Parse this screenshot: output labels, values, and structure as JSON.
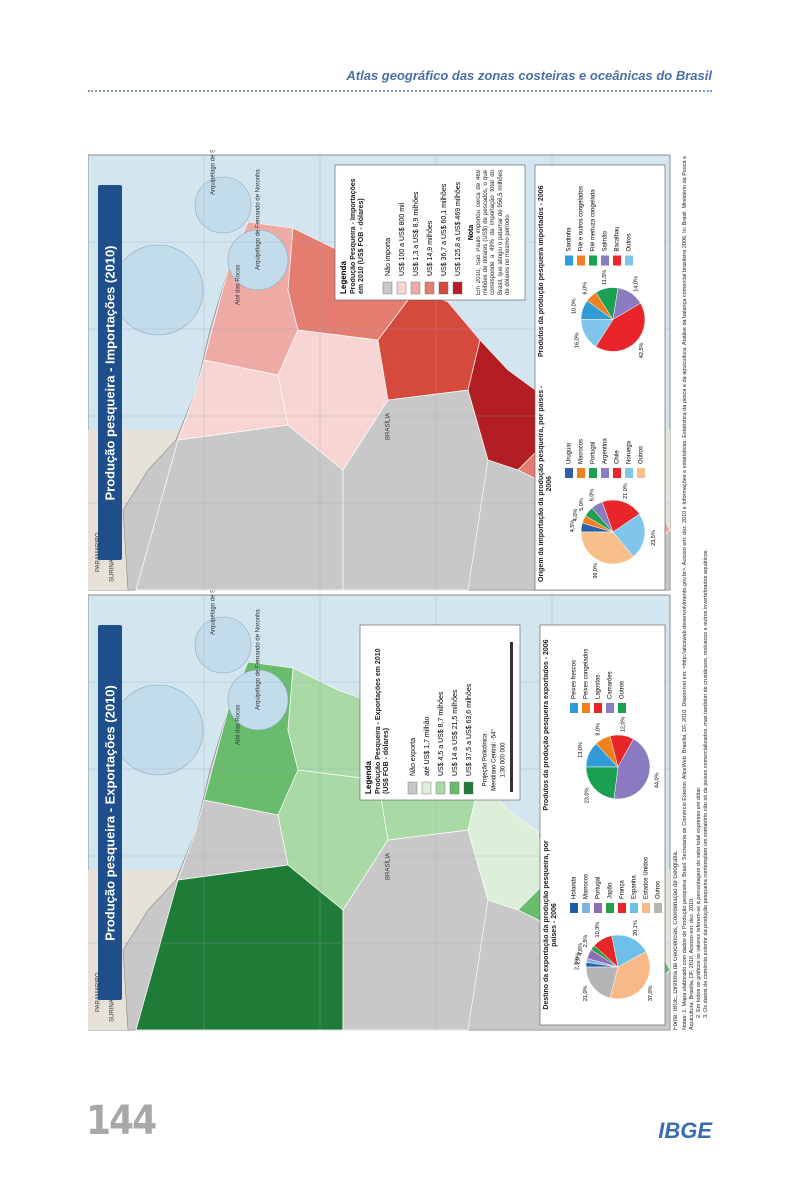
{
  "header": {
    "title": "Atlas geográfico das zonas costeiras e oceânicas do Brasil",
    "page_number": "144",
    "logo": "IBGE"
  },
  "panels": [
    {
      "title": "Produção pesqueira - Exportações (2010)",
      "legend": {
        "heading": "Legenda",
        "subtitle": "Produção Pesqueira - Exportações em 2010 (US$ FOB - dólares)",
        "items": [
          {
            "label": "Não exporta",
            "color": "#c8c8c8"
          },
          {
            "label": "até US$ 1,7 milhão",
            "color": "#dcefd8"
          },
          {
            "label": "US$ 4,5 a US$ 8,7 milhões",
            "color": "#a9d9a4"
          },
          {
            "label": "US$ 14 a US$ 21,5 milhões",
            "color": "#69bb6d"
          },
          {
            "label": "US$ 37,5 a US$ 63,6 milhões",
            "color": "#1e7c37"
          }
        ],
        "projection": "Projeção Policônica",
        "meridian": "Meridiano Central: -54°",
        "scale": "1:30 000 000"
      },
      "map_labels": [
        "PARAMARIBO",
        "SURINAME",
        "GUYANE",
        "Atol das Rocas",
        "Arquipélago de Fernando de Noronha",
        "Arquipélago de São Pedro e São Paulo",
        "BRASÍLIA",
        "PARAGUAY",
        "ARGENTINA",
        "URUGUAY",
        "MONTEVIDEO"
      ],
      "charts": [
        {
          "type": "pie",
          "title": "Destino da exportação da produção pesqueira, por países - 2006",
          "categories": [
            "Holanda",
            "Marrocos",
            "Portugal",
            "Japão",
            "França",
            "Espanha",
            "Estados Unidos",
            "Outros"
          ],
          "values": [
            2.3,
            2.0,
            4.8,
            2.5,
            10.3,
            20.1,
            37.0,
            21.0
          ],
          "value_labels": [
            "2,3%",
            "2,0%",
            "4,8%",
            "2,5%",
            "10,3%",
            "20,1%",
            "37,0%",
            "21,0%"
          ],
          "colors": [
            "#1f5fa8",
            "#7fb3dd",
            "#8f6bb3",
            "#2a9d4a",
            "#e8262a",
            "#6ec0e8",
            "#f7b988",
            "#b5b5b5"
          ]
        },
        {
          "type": "pie",
          "title": "Produtos da produção pesqueira exportados - 2006",
          "categories": [
            "Peixes frescos",
            "Peixes congelados",
            "Lagostas",
            "Camarões",
            "Outros"
          ],
          "values": [
            13.0,
            8.0,
            12.0,
            44.0,
            23.0
          ],
          "value_labels": [
            "13,0%",
            "8,0%",
            "12,0%",
            "44,0%",
            "23,0%"
          ],
          "colors": [
            "#2f9bd8",
            "#f08020",
            "#e8262a",
            "#8b7bc0",
            "#1aa050"
          ]
        }
      ]
    },
    {
      "title": "Produção pesqueira - Importações (2010)",
      "legend": {
        "heading": "Legenda",
        "subtitle": "Produção Pesqueira - Importações em 2010 (US$ FOB - dólares)",
        "items": [
          {
            "label": "Não importa",
            "color": "#c8c8c8"
          },
          {
            "label": "US$ 100 a US$ 800 mil",
            "color": "#f6d5d3"
          },
          {
            "label": "US$ 1,3 a US$ 8,9 milhões",
            "color": "#eeaaa5"
          },
          {
            "label": "US$ 14,9 milhões",
            "color": "#e47d70"
          },
          {
            "label": "US$ 36,7 a US$ 60,1 milhões",
            "color": "#d6493d"
          },
          {
            "label": "US$ 125,8 a US$ 469 milhões",
            "color": "#b31e24"
          }
        ],
        "note_title": "Nota",
        "note": "Em 2010, São Paulo importou cerca de 469 milhões de dólares (US$) de pescados, o que corresponde a 49% da importação total do Brasil, que atingiu o patamar de 956,5 milhões de dólares no mesmo período."
      },
      "map_labels": [
        "PARAMARIBO",
        "SURINAME",
        "GUYANE",
        "Atol das Rocas",
        "Arquipélago de Fernando de Noronha",
        "Arquipélago de São Pedro e São Paulo",
        "BRASÍLIA",
        "PARAGUAY",
        "ARGENTINA",
        "URUGUAY",
        "MONTEVIDEO"
      ],
      "charts": [
        {
          "type": "pie",
          "title": "Origem da importação da produção pesqueira, por países - 2006",
          "categories": [
            "Uruguai",
            "Marrocos",
            "Portugal",
            "Argentina",
            "Chile",
            "Noruega",
            "Outros"
          ],
          "values": [
            4.5,
            4.0,
            5.0,
            6.0,
            21.0,
            23.5,
            36.0
          ],
          "value_labels": [
            "4,5%",
            "4,0%",
            "5,0%",
            "6,0%",
            "21,0%",
            "23,5%",
            "36,0%"
          ],
          "colors": [
            "#2f5fa8",
            "#f08020",
            "#1aa050",
            "#8b7bc0",
            "#e8262a",
            "#7fc5ec",
            "#f7c08a"
          ]
        },
        {
          "type": "pie",
          "title": "Produtos da produção pesqueira importados - 2006",
          "categories": [
            "Sardinha",
            "Filé e outros congelados",
            "Filé merluza congelada",
            "Salmão",
            "Bacalhau",
            "Outros"
          ],
          "values": [
            10.0,
            6.0,
            11.5,
            14.0,
            42.5,
            16.0
          ],
          "value_labels": [
            "10,0%",
            "6,0%",
            "11,5%",
            "14,0%",
            "42,5%",
            "16,0%"
          ],
          "colors": [
            "#2f9bd8",
            "#f08020",
            "#1aa050",
            "#8b7bc0",
            "#e8262a",
            "#7fc5ec"
          ]
        }
      ]
    }
  ],
  "footer": {
    "source": "Fonte: IBGE, Diretoria de Geociências, Coordenação de Geografia.",
    "notes": [
      "Notas: 1. Mapa elaborado com dados de Produção pesqueira: Brasil. Secretaria de Comércio Exterior. AliceWeb. Brasília, DF, 2010. Disponível em: <http://aliceweb.desenvolvimento.gov.br>. Acesso em: dez. 2010 e Informações e estatísticas: Estatística da pesca e da aquicultura. Análise da balança comercial brasileira 2006. In: Brasil. Ministério da Pesca e Aquicultura. Brasília, DF, 2010. Acesso em: dez. 2010.",
      "2. Em todos os gráficos os valores referem-se à percentagem do valor total expresso em dólar.",
      "3. Os dados de comércio exterior da produção pesqueira contemplam um somatório não só de peixes comercializados, mas também de crustáceos, moluscos e outros invertebrados aquáticos."
    ]
  }
}
